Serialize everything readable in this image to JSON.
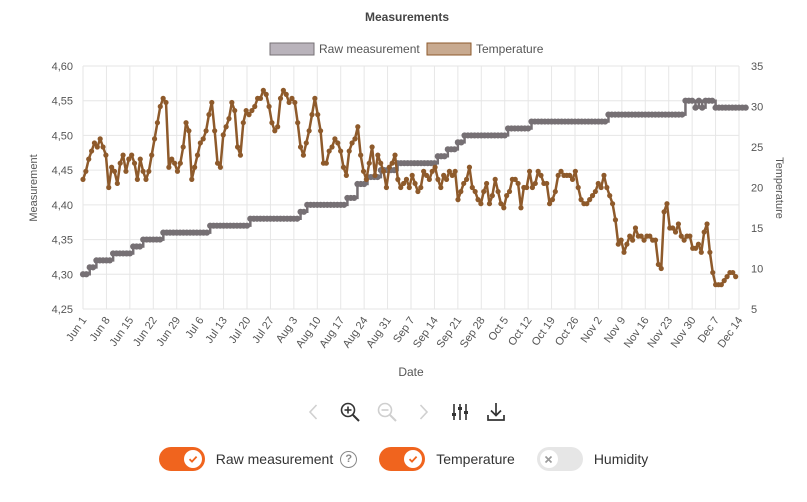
{
  "colors": {
    "raw": "#767074",
    "raw_legend_fill": "#b9b3bb",
    "temperature": "#8e5a2b",
    "temperature_legend_fill": "#c8aa90",
    "toggle_on": "#f0641e",
    "toggle_off": "#e6e6e6",
    "grid": "#e6e6e6"
  },
  "chart_data": {
    "type": "line",
    "title": "Measurements",
    "xlabel": "Date",
    "ylabel_left": "Measurement",
    "ylabel_right": "Temperature",
    "x_range": [
      "Jun 1",
      "Dec 15"
    ],
    "x_ticks": [
      "Jun 1",
      "Jun 8",
      "Jun 15",
      "Jun 22",
      "Jun 29",
      "Jul 6",
      "Jul 13",
      "Jul 20",
      "Jul 27",
      "Aug 3",
      "Aug 10",
      "Aug 17",
      "Aug 24",
      "Aug 31",
      "Sep 7",
      "Sep 14",
      "Sep 21",
      "Sep 28",
      "Oct 5",
      "Oct 12",
      "Oct 19",
      "Oct 26",
      "Nov 2",
      "Nov 9",
      "Nov 16",
      "Nov 23",
      "Nov 30",
      "Dec 7",
      "Dec 14"
    ],
    "y_left": {
      "min": 4.25,
      "max": 4.6,
      "ticks": [
        "4,25",
        "4,30",
        "4,35",
        "4,40",
        "4,45",
        "4,50",
        "4,55",
        "4,60"
      ]
    },
    "y_right": {
      "min": 5,
      "max": 35,
      "ticks": [
        "5",
        "10",
        "15",
        "20",
        "25",
        "30",
        "35"
      ]
    },
    "legend_position": "top-center",
    "grid": true,
    "series": [
      {
        "name": "Raw measurement",
        "axis": "left",
        "steps": [
          [
            0,
            4.3
          ],
          [
            2,
            4.31
          ],
          [
            4,
            4.32
          ],
          [
            9,
            4.33
          ],
          [
            15,
            4.34
          ],
          [
            18,
            4.35
          ],
          [
            24,
            4.36
          ],
          [
            38,
            4.37
          ],
          [
            50,
            4.38
          ],
          [
            55,
            4.38
          ],
          [
            65,
            4.39
          ],
          [
            67,
            4.4
          ],
          [
            79,
            4.41
          ],
          [
            82,
            4.43
          ],
          [
            85,
            4.44
          ],
          [
            89,
            4.45
          ],
          [
            94,
            4.46
          ],
          [
            106,
            4.47
          ],
          [
            109,
            4.48
          ],
          [
            112,
            4.49
          ],
          [
            114,
            4.5
          ],
          [
            127,
            4.51
          ],
          [
            134,
            4.52
          ],
          [
            153,
            4.52
          ],
          [
            155,
            4.52
          ],
          [
            157,
            4.53
          ],
          [
            173,
            4.53
          ],
          [
            180,
            4.55
          ],
          [
            183,
            4.54
          ],
          [
            184,
            4.55
          ],
          [
            185,
            4.54
          ],
          [
            186,
            4.55
          ],
          [
            189,
            4.54
          ],
          [
            198,
            4.54
          ]
        ]
      },
      {
        "name": "Temperature",
        "axis": "right",
        "points": [
          [
            0,
            21
          ],
          [
            1,
            22
          ],
          [
            2,
            23.5
          ],
          [
            3,
            24.5
          ],
          [
            4,
            25.5
          ],
          [
            5,
            25
          ],
          [
            6,
            26
          ],
          [
            7,
            25
          ],
          [
            8,
            24
          ],
          [
            9,
            20
          ],
          [
            10,
            22.5
          ],
          [
            11,
            22
          ],
          [
            12,
            20.5
          ],
          [
            13,
            23
          ],
          [
            14,
            24
          ],
          [
            15,
            22
          ],
          [
            16,
            23.5
          ],
          [
            17,
            24
          ],
          [
            18,
            23
          ],
          [
            19,
            21
          ],
          [
            20,
            23.5
          ],
          [
            21,
            22
          ],
          [
            22,
            21
          ],
          [
            23,
            22
          ],
          [
            24,
            24
          ],
          [
            25,
            26
          ],
          [
            26,
            28
          ],
          [
            27,
            30
          ],
          [
            28,
            31
          ],
          [
            29,
            30.5
          ],
          [
            30,
            22.5
          ],
          [
            31,
            23.5
          ],
          [
            32,
            23
          ],
          [
            33,
            22
          ],
          [
            34,
            23
          ],
          [
            35,
            25
          ],
          [
            36,
            28
          ],
          [
            37,
            27
          ],
          [
            38,
            21
          ],
          [
            39,
            22.5
          ],
          [
            40,
            24
          ],
          [
            41,
            25.5
          ],
          [
            42,
            26
          ],
          [
            43,
            27
          ],
          [
            44,
            29
          ],
          [
            45,
            30.5
          ],
          [
            46,
            27
          ],
          [
            47,
            23
          ],
          [
            48,
            22.5
          ],
          [
            49,
            26.5
          ],
          [
            50,
            27.5
          ],
          [
            51,
            28.5
          ],
          [
            52,
            30.5
          ],
          [
            53,
            29.5
          ],
          [
            54,
            25
          ],
          [
            55,
            24
          ],
          [
            56,
            28
          ],
          [
            57,
            29.5
          ],
          [
            58,
            29
          ],
          [
            59,
            29.5
          ],
          [
            60,
            30
          ],
          [
            61,
            31
          ],
          [
            62,
            31
          ],
          [
            63,
            32
          ],
          [
            64,
            31.5
          ],
          [
            65,
            30
          ],
          [
            66,
            28
          ],
          [
            67,
            27
          ],
          [
            68,
            27.5
          ],
          [
            69,
            31
          ],
          [
            70,
            32
          ],
          [
            71,
            31.5
          ],
          [
            72,
            30.5
          ],
          [
            73,
            31
          ],
          [
            74,
            30.5
          ],
          [
            75,
            28
          ],
          [
            76,
            25
          ],
          [
            77,
            24
          ],
          [
            78,
            25.5
          ],
          [
            79,
            27
          ],
          [
            80,
            29
          ],
          [
            81,
            31
          ],
          [
            82,
            29
          ],
          [
            83,
            27
          ],
          [
            84,
            23
          ],
          [
            85,
            23
          ],
          [
            86,
            24.5
          ],
          [
            87,
            25
          ],
          [
            88,
            26
          ],
          [
            89,
            25.5
          ],
          [
            90,
            24.5
          ],
          [
            91,
            22.5
          ],
          [
            92,
            21.5
          ],
          [
            93,
            24.5
          ],
          [
            94,
            25.5
          ],
          [
            95,
            26
          ],
          [
            96,
            27.5
          ],
          [
            97,
            24
          ],
          [
            98,
            22
          ],
          [
            99,
            21
          ],
          [
            100,
            23
          ],
          [
            101,
            25
          ],
          [
            102,
            21.5
          ],
          [
            103,
            24
          ],
          [
            104,
            23
          ],
          [
            105,
            22
          ],
          [
            106,
            20
          ],
          [
            107,
            22.5
          ],
          [
            108,
            23
          ],
          [
            109,
            24
          ],
          [
            110,
            21
          ],
          [
            111,
            20
          ],
          [
            112,
            20.5
          ],
          [
            113,
            21
          ],
          [
            114,
            20
          ],
          [
            115,
            21.5
          ],
          [
            116,
            20.5
          ],
          [
            117,
            19.5
          ],
          [
            118,
            20
          ],
          [
            119,
            22
          ],
          [
            120,
            21.5
          ],
          [
            121,
            21
          ],
          [
            122,
            22
          ],
          [
            123,
            22.5
          ],
          [
            124,
            21
          ],
          [
            125,
            20
          ],
          [
            126,
            21.5
          ],
          [
            127,
            21
          ],
          [
            128,
            22
          ],
          [
            129,
            21.5
          ],
          [
            130,
            22
          ],
          [
            131,
            18.5
          ],
          [
            132,
            19.5
          ],
          [
            133,
            20.5
          ],
          [
            134,
            21
          ],
          [
            135,
            22.5
          ],
          [
            136,
            20
          ],
          [
            137,
            19.5
          ],
          [
            138,
            18.5
          ],
          [
            139,
            18
          ],
          [
            140,
            19.5
          ],
          [
            141,
            20.5
          ],
          [
            142,
            18
          ],
          [
            143,
            19
          ],
          [
            144,
            21
          ],
          [
            145,
            19.5
          ],
          [
            146,
            18
          ],
          [
            147,
            17.5
          ],
          [
            148,
            19
          ],
          [
            149,
            19.5
          ],
          [
            150,
            21
          ],
          [
            151,
            21
          ],
          [
            152,
            20.5
          ],
          [
            153,
            17.5
          ],
          [
            154,
            20
          ],
          [
            155,
            20
          ],
          [
            156,
            22
          ],
          [
            157,
            20
          ],
          [
            158,
            20.5
          ],
          [
            159,
            22
          ],
          [
            160,
            21.5
          ],
          [
            161,
            20.5
          ],
          [
            162,
            20.5
          ],
          [
            163,
            18
          ],
          [
            164,
            18.5
          ],
          [
            165,
            19.5
          ],
          [
            166,
            21.5
          ],
          [
            167,
            22
          ],
          [
            168,
            21.5
          ],
          [
            169,
            21.5
          ],
          [
            170,
            21.5
          ],
          [
            171,
            21
          ],
          [
            172,
            22
          ],
          [
            173,
            20
          ],
          [
            174,
            18.5
          ],
          [
            175,
            18
          ],
          [
            176,
            18
          ],
          [
            177,
            18.5
          ],
          [
            178,
            19
          ],
          [
            179,
            19.5
          ],
          [
            180,
            20.5
          ],
          [
            181,
            20
          ],
          [
            182,
            21.5
          ],
          [
            183,
            20
          ],
          [
            184,
            19
          ],
          [
            185,
            18
          ],
          [
            186,
            16
          ],
          [
            187,
            13
          ],
          [
            188,
            13.5
          ],
          [
            189,
            12
          ],
          [
            190,
            13
          ],
          [
            191,
            14
          ],
          [
            192,
            13.5
          ],
          [
            193,
            15
          ],
          [
            194,
            14
          ],
          [
            195,
            14
          ],
          [
            196,
            13.5
          ],
          [
            197,
            14
          ],
          [
            198,
            14
          ],
          [
            199,
            13.5
          ],
          [
            200,
            13.5
          ],
          [
            201,
            10.5
          ],
          [
            202,
            10
          ],
          [
            203,
            17
          ],
          [
            204,
            18
          ],
          [
            205,
            15
          ],
          [
            206,
            15
          ],
          [
            207,
            14.5
          ],
          [
            208,
            15.5
          ],
          [
            209,
            14
          ],
          [
            210,
            13.5
          ],
          [
            211,
            14
          ],
          [
            212,
            14
          ],
          [
            213,
            12.5
          ],
          [
            214,
            12.5
          ],
          [
            215,
            13
          ],
          [
            216,
            12
          ],
          [
            217,
            14.5
          ],
          [
            218,
            15.5
          ],
          [
            219,
            12
          ],
          [
            220,
            9.5
          ],
          [
            221,
            8
          ],
          [
            222,
            8
          ],
          [
            223,
            8
          ],
          [
            224,
            8.5
          ],
          [
            225,
            9
          ],
          [
            226,
            9.5
          ],
          [
            227,
            9.5
          ],
          [
            228,
            9
          ]
        ]
      }
    ]
  },
  "legend": {
    "raw_label": "Raw measurement",
    "temperature_label": "Temperature"
  },
  "toolbar": {
    "items": [
      "chevron-left-icon",
      "zoom-in-icon",
      "zoom-out-icon",
      "chevron-right-icon",
      "sliders-icon",
      "download-icon"
    ]
  },
  "toggles": [
    {
      "label": "Raw measurement",
      "on": true,
      "help": "?"
    },
    {
      "label": "Temperature",
      "on": true
    },
    {
      "label": "Humidity",
      "on": false
    }
  ]
}
